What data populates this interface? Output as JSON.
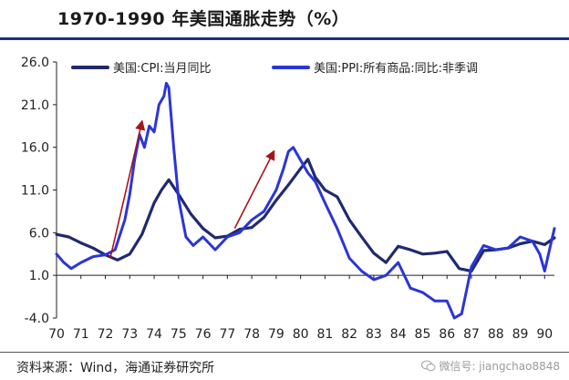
{
  "title": "1970-1990 年美国通胀走势（%）",
  "source": "资料来源：Wind，海通证券研究所",
  "watermark": "微信号: jiangchao8848",
  "colors": {
    "cpi": "#1f2a6e",
    "ppi": "#2b35d6",
    "arrow": "#a8141c",
    "rule": "#1f2f7a"
  },
  "chart_data": {
    "type": "line",
    "title": "1970-1990 年美国通胀走势（%）",
    "xlabel": "",
    "ylabel": "",
    "xlim": [
      1970,
      1990.4
    ],
    "ylim": [
      -4.0,
      26.0
    ],
    "yticks": [
      26.0,
      21.0,
      16.0,
      11.0,
      6.0,
      1.0,
      -4.0
    ],
    "ytick_labels": [
      "26.0",
      "21.0",
      "16.0",
      "11.0",
      "6.0",
      "1.0",
      "-4.0"
    ],
    "xticks": [
      1970,
      1971,
      1972,
      1973,
      1974,
      1975,
      1976,
      1977,
      1978,
      1979,
      1980,
      1981,
      1982,
      1983,
      1984,
      1985,
      1986,
      1987,
      1988,
      1989,
      1990
    ],
    "xtick_labels": [
      "70",
      "71",
      "72",
      "73",
      "74",
      "75",
      "76",
      "77",
      "78",
      "79",
      "80",
      "81",
      "82",
      "83",
      "84",
      "85",
      "86",
      "87",
      "88",
      "89",
      "90"
    ],
    "grid": false,
    "legend": "top",
    "series": [
      {
        "name": "美国:CPI:当月同比",
        "x": [
          1970.0,
          1970.5,
          1971.0,
          1971.5,
          1972.0,
          1972.5,
          1973.0,
          1973.5,
          1974.0,
          1974.3,
          1974.6,
          1975.0,
          1975.5,
          1976.0,
          1976.5,
          1977.0,
          1977.5,
          1978.0,
          1978.5,
          1979.0,
          1979.5,
          1980.0,
          1980.3,
          1980.6,
          1981.0,
          1981.5,
          1982.0,
          1982.5,
          1983.0,
          1983.5,
          1984.0,
          1984.5,
          1985.0,
          1985.5,
          1986.0,
          1986.5,
          1987.0,
          1987.5,
          1988.0,
          1988.5,
          1989.0,
          1989.5,
          1990.0,
          1990.4
        ],
        "values": [
          5.8,
          5.5,
          4.8,
          4.2,
          3.4,
          2.8,
          3.5,
          5.8,
          9.5,
          11.0,
          12.2,
          10.5,
          8.2,
          6.5,
          5.4,
          5.6,
          6.4,
          6.6,
          7.8,
          9.8,
          11.6,
          13.5,
          14.6,
          12.5,
          11.0,
          10.2,
          7.5,
          5.5,
          3.6,
          2.5,
          4.4,
          4.0,
          3.5,
          3.6,
          3.8,
          1.8,
          1.5,
          3.9,
          4.0,
          4.2,
          4.7,
          5.0,
          4.6,
          5.4
        ]
      },
      {
        "name": "美国:PPI:所有商品:同比:非季调",
        "x": [
          1970.0,
          1970.3,
          1970.6,
          1971.0,
          1971.5,
          1972.0,
          1972.4,
          1972.8,
          1973.0,
          1973.2,
          1973.4,
          1973.6,
          1973.8,
          1974.0,
          1974.2,
          1974.4,
          1974.5,
          1974.6,
          1974.8,
          1975.0,
          1975.3,
          1975.6,
          1976.0,
          1976.5,
          1977.0,
          1977.5,
          1978.0,
          1978.5,
          1979.0,
          1979.3,
          1979.5,
          1979.7,
          1980.0,
          1980.3,
          1980.6,
          1981.0,
          1981.5,
          1982.0,
          1982.5,
          1983.0,
          1983.5,
          1984.0,
          1984.5,
          1985.0,
          1985.5,
          1986.0,
          1986.3,
          1986.6,
          1987.0,
          1987.5,
          1988.0,
          1988.5,
          1989.0,
          1989.5,
          1989.8,
          1990.0,
          1990.2,
          1990.4
        ],
        "values": [
          3.5,
          2.5,
          1.8,
          2.5,
          3.2,
          3.4,
          4.0,
          7.5,
          10.5,
          14.5,
          17.5,
          16.0,
          18.5,
          17.8,
          21.0,
          22.0,
          23.5,
          23.0,
          16.0,
          10.0,
          5.5,
          4.5,
          5.5,
          4.0,
          5.5,
          6.0,
          7.5,
          8.5,
          11.0,
          13.5,
          15.5,
          16.0,
          14.5,
          13.0,
          12.0,
          9.5,
          6.5,
          3.0,
          1.5,
          0.5,
          1.0,
          2.5,
          -0.5,
          -1.0,
          -2.0,
          -2.0,
          -4.0,
          -3.5,
          2.0,
          4.5,
          4.0,
          4.2,
          5.5,
          5.0,
          3.5,
          1.5,
          4.0,
          6.5
        ]
      }
    ],
    "annotations": [
      {
        "type": "arrow",
        "from": [
          1972.2,
          3.0
        ],
        "to": [
          1973.5,
          19.0
        ]
      },
      {
        "type": "arrow",
        "from": [
          1977.3,
          6.5
        ],
        "to": [
          1978.9,
          15.5
        ]
      }
    ]
  }
}
